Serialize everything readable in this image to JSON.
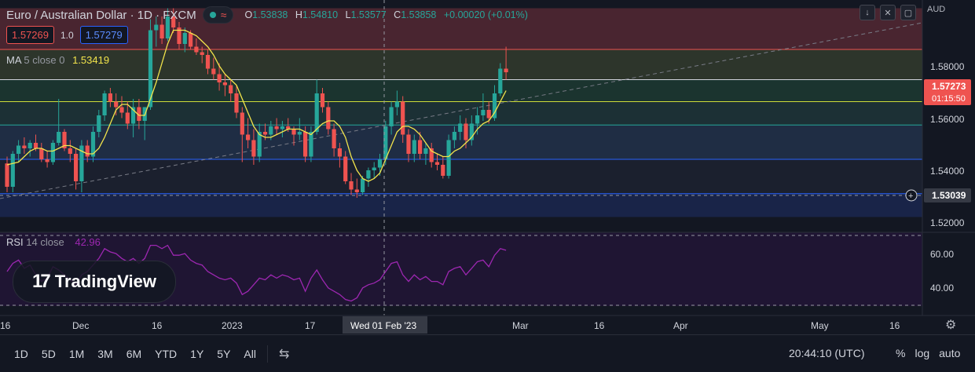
{
  "header": {
    "symbol": "Euro / Australian Dollar · 1D · FXCM",
    "ohlc": {
      "o_label": "O",
      "o": "1.53838",
      "h_label": "H",
      "h": "1.54810",
      "l_label": "L",
      "l": "1.53577",
      "c_label": "C",
      "c": "1.53858",
      "change": "+0.00020 (+0.01%)"
    },
    "sell_price": "1.57269",
    "spread": "1.0",
    "buy_price": "1.57279",
    "currency": "AUD",
    "buttons": [
      "down-arrow-icon",
      "collapse-icon",
      "fullscreen-icon"
    ]
  },
  "ma": {
    "name": "MA",
    "params": "5 close 0",
    "value": "1.53419",
    "color": "#f2e44b"
  },
  "rsi": {
    "name": "RSI",
    "params": "14 close",
    "value": "42.96",
    "color": "#9c27b0"
  },
  "price_axis": {
    "ticks": [
      "1.58000",
      "1.56000",
      "1.54000",
      "1.52000"
    ],
    "last_price": "1.57273",
    "countdown": "01:15:50",
    "crosshair_price": "1.53039"
  },
  "rsi_axis": {
    "ticks": [
      "60.00",
      "40.00"
    ]
  },
  "time_axis": {
    "labels": [
      "16",
      "Dec",
      "16",
      "2023",
      "17",
      "Mar",
      "16",
      "Apr",
      "May",
      "16"
    ],
    "crosshair_date": "Wed 01 Feb '23"
  },
  "logo": "TradingView",
  "bottom_bar": {
    "ranges": [
      "1D",
      "5D",
      "1M",
      "3M",
      "6M",
      "YTD",
      "1Y",
      "5Y",
      "All"
    ],
    "clock": "20:44:10 (UTC)",
    "options": [
      "%",
      "log",
      "auto"
    ]
  },
  "colors": {
    "up": "#26a69a",
    "down": "#ef5350",
    "bg": "#131722",
    "grid": "#2a2e39"
  },
  "chart_data": {
    "type": "candlestick",
    "y_range": [
      1.515,
      1.599
    ],
    "candles": [
      [
        1.5395,
        1.542,
        1.529,
        1.531
      ],
      [
        1.531,
        1.544,
        1.529,
        1.543
      ],
      [
        1.543,
        1.548,
        1.54,
        1.546
      ],
      [
        1.546,
        1.549,
        1.543,
        1.545
      ],
      [
        1.545,
        1.548,
        1.542,
        1.547
      ],
      [
        1.547,
        1.55,
        1.544,
        1.545
      ],
      [
        1.545,
        1.547,
        1.54,
        1.541
      ],
      [
        1.541,
        1.544,
        1.538,
        1.54
      ],
      [
        1.54,
        1.548,
        1.539,
        1.547
      ],
      [
        1.547,
        1.563,
        1.546,
        1.551
      ],
      [
        1.551,
        1.552,
        1.544,
        1.545
      ],
      [
        1.545,
        1.548,
        1.54,
        1.543
      ],
      [
        1.543,
        1.545,
        1.53,
        1.533
      ],
      [
        1.533,
        1.548,
        1.529,
        1.546
      ],
      [
        1.546,
        1.548,
        1.54,
        1.542
      ],
      [
        1.542,
        1.553,
        1.54,
        1.551
      ],
      [
        1.551,
        1.559,
        1.549,
        1.557
      ],
      [
        1.557,
        1.566,
        1.555,
        1.565
      ],
      [
        1.565,
        1.567,
        1.56,
        1.562
      ],
      [
        1.562,
        1.565,
        1.557,
        1.56
      ],
      [
        1.56,
        1.564,
        1.556,
        1.558
      ],
      [
        1.558,
        1.562,
        1.552,
        1.554
      ],
      [
        1.554,
        1.563,
        1.549,
        1.56
      ],
      [
        1.56,
        1.563,
        1.552,
        1.555
      ],
      [
        1.555,
        1.56,
        1.548,
        1.56
      ],
      [
        1.56,
        1.592,
        1.559,
        1.588
      ],
      [
        1.588,
        1.593,
        1.582,
        1.59
      ],
      [
        1.59,
        1.593,
        1.583,
        1.585
      ],
      [
        1.585,
        1.596,
        1.584,
        1.593
      ],
      [
        1.593,
        1.596,
        1.587,
        1.589
      ],
      [
        1.589,
        1.591,
        1.581,
        1.583
      ],
      [
        1.583,
        1.589,
        1.58,
        1.587
      ],
      [
        1.587,
        1.588,
        1.581,
        1.582
      ],
      [
        1.582,
        1.585,
        1.579,
        1.58
      ],
      [
        1.58,
        1.582,
        1.576,
        1.579
      ],
      [
        1.579,
        1.581,
        1.572,
        1.574
      ],
      [
        1.574,
        1.578,
        1.57,
        1.572
      ],
      [
        1.572,
        1.576,
        1.566,
        1.569
      ],
      [
        1.569,
        1.572,
        1.564,
        1.568
      ],
      [
        1.568,
        1.57,
        1.562,
        1.565
      ],
      [
        1.565,
        1.568,
        1.556,
        1.558
      ],
      [
        1.558,
        1.56,
        1.54,
        1.55
      ],
      [
        1.55,
        1.556,
        1.545,
        1.548
      ],
      [
        1.548,
        1.552,
        1.539,
        1.542
      ],
      [
        1.542,
        1.554,
        1.54,
        1.551
      ],
      [
        1.551,
        1.554,
        1.548,
        1.55
      ],
      [
        1.55,
        1.555,
        1.548,
        1.553
      ],
      [
        1.553,
        1.556,
        1.55,
        1.552
      ],
      [
        1.552,
        1.555,
        1.549,
        1.553
      ],
      [
        1.553,
        1.556,
        1.551,
        1.552
      ],
      [
        1.552,
        1.553,
        1.546,
        1.55
      ],
      [
        1.55,
        1.556,
        1.548,
        1.551
      ],
      [
        1.551,
        1.553,
        1.54,
        1.542
      ],
      [
        1.542,
        1.553,
        1.54,
        1.551
      ],
      [
        1.551,
        1.57,
        1.55,
        1.565
      ],
      [
        1.565,
        1.567,
        1.558,
        1.56
      ],
      [
        1.56,
        1.562,
        1.55,
        1.552
      ],
      [
        1.552,
        1.554,
        1.542,
        1.545
      ],
      [
        1.545,
        1.547,
        1.538,
        1.542
      ],
      [
        1.542,
        1.544,
        1.532,
        1.533
      ],
      [
        1.533,
        1.536,
        1.528,
        1.53
      ],
      [
        1.53,
        1.534,
        1.527,
        1.529
      ],
      [
        1.529,
        1.535,
        1.528,
        1.534
      ],
      [
        1.534,
        1.538,
        1.531,
        1.537
      ],
      [
        1.537,
        1.54,
        1.534,
        1.538
      ],
      [
        1.538,
        1.543,
        1.535,
        1.541
      ],
      [
        1.541,
        1.555,
        1.539,
        1.553
      ],
      [
        1.553,
        1.562,
        1.55,
        1.56
      ],
      [
        1.56,
        1.566,
        1.557,
        1.562
      ],
      [
        1.562,
        1.564,
        1.547,
        1.55
      ],
      [
        1.55,
        1.552,
        1.54,
        1.543
      ],
      [
        1.543,
        1.55,
        1.54,
        1.548
      ],
      [
        1.548,
        1.551,
        1.541,
        1.543
      ],
      [
        1.543,
        1.547,
        1.539,
        1.545
      ],
      [
        1.545,
        1.547,
        1.538,
        1.54
      ],
      [
        1.54,
        1.543,
        1.537,
        1.539
      ],
      [
        1.539,
        1.542,
        1.534,
        1.535
      ],
      [
        1.535,
        1.55,
        1.534,
        1.548
      ],
      [
        1.548,
        1.553,
        1.545,
        1.551
      ],
      [
        1.551,
        1.557,
        1.548,
        1.554
      ],
      [
        1.554,
        1.556,
        1.545,
        1.548
      ],
      [
        1.548,
        1.557,
        1.546,
        1.554
      ],
      [
        1.554,
        1.56,
        1.55,
        1.557
      ],
      [
        1.557,
        1.565,
        1.555,
        1.559
      ],
      [
        1.559,
        1.562,
        1.554,
        1.556
      ],
      [
        1.556,
        1.568,
        1.555,
        1.565
      ],
      [
        1.565,
        1.576,
        1.564,
        1.574
      ],
      [
        1.574,
        1.582,
        1.57,
        1.5727
      ]
    ],
    "ma5": [
      1.539,
      1.5395,
      1.54,
      1.542,
      1.544,
      1.545,
      1.545,
      1.544,
      1.544,
      1.545,
      1.546,
      1.546,
      1.545,
      1.544,
      1.543,
      1.543,
      1.545,
      1.549,
      1.554,
      1.559,
      1.561,
      1.561,
      1.559,
      1.557,
      1.557,
      1.563,
      1.569,
      1.576,
      1.583,
      1.588,
      1.588,
      1.588,
      1.587,
      1.586,
      1.584,
      1.582,
      1.579,
      1.575,
      1.572,
      1.57,
      1.568,
      1.563,
      1.558,
      1.553,
      1.55,
      1.549,
      1.549,
      1.55,
      1.551,
      1.552,
      1.552,
      1.552,
      1.551,
      1.55,
      1.552,
      1.554,
      1.555,
      1.555,
      1.553,
      1.549,
      1.542,
      1.537,
      1.534,
      1.533,
      1.534,
      1.536,
      1.541,
      1.546,
      1.551,
      1.553,
      1.553,
      1.552,
      1.55,
      1.547,
      1.544,
      1.543,
      1.542,
      1.542,
      1.544,
      1.545,
      1.547,
      1.549,
      1.552,
      1.554,
      1.555,
      1.558,
      1.562,
      1.566
    ],
    "rsi": [
      52,
      57,
      59,
      54,
      56,
      50,
      46,
      48,
      55,
      53,
      50,
      47,
      44,
      50,
      52,
      56,
      60,
      66,
      64,
      63,
      60,
      58,
      60,
      57,
      60,
      68,
      68,
      66,
      68,
      62,
      62,
      63,
      59,
      57,
      56,
      52,
      50,
      48,
      47,
      48,
      45,
      38,
      40,
      44,
      48,
      47,
      50,
      48,
      50,
      49,
      47,
      48,
      40,
      48,
      53,
      47,
      42,
      40,
      38,
      35,
      34,
      36,
      42,
      44,
      45,
      47,
      52,
      57,
      58,
      50,
      46,
      50,
      47,
      49,
      46,
      46,
      44,
      52,
      54,
      55,
      50,
      54,
      58,
      59,
      55,
      62,
      66,
      65
    ],
    "rsi_range": [
      30,
      75
    ],
    "levels": [
      {
        "price": 1.581,
        "color": "#ef5350"
      },
      {
        "price": 1.57,
        "color": "#d1d4dc"
      },
      {
        "price": 1.562,
        "color": "#cddc39"
      },
      {
        "price": 1.5535,
        "color": "#26a69a"
      },
      {
        "price": 1.541,
        "color": "#2962ff"
      },
      {
        "price": 1.5285,
        "color": "#2962ff"
      }
    ],
    "zones": [
      {
        "from": 1.596,
        "to": 1.581,
        "color": "#5c2b36"
      },
      {
        "from": 1.581,
        "to": 1.57,
        "color": "#37402f"
      },
      {
        "from": 1.57,
        "to": 1.562,
        "color": "#1f3f34"
      },
      {
        "from": 1.562,
        "to": 1.5535,
        "color": "#203a3c"
      },
      {
        "from": 1.5535,
        "to": 1.541,
        "color": "#243550"
      },
      {
        "from": 1.541,
        "to": 1.5285,
        "color": "#1f2433"
      },
      {
        "from": 1.5285,
        "to": 1.52,
        "color": "#1c2a55"
      }
    ]
  }
}
